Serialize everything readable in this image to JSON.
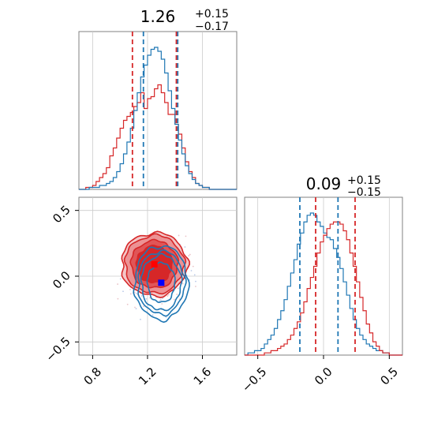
{
  "chart_data": {
    "type": "corner",
    "colors": {
      "series_a": "#1f77b4",
      "series_b": "#d62728",
      "series_a_marker": "#0000ff",
      "series_b_marker": "#ff0000",
      "grid": "#cccccc"
    },
    "parameters": [
      {
        "title": {
          "median": "1.26",
          "upper": "+0.15",
          "lower": "−0.17"
        },
        "range": [
          0.7,
          1.85
        ],
        "ticks": [
          0.8,
          1.2,
          1.6
        ],
        "tick_labels": [
          "0.8",
          "1.2",
          "1.6"
        ],
        "quantile_lines": {
          "series_a": [
            1.17,
            1.42
          ],
          "series_b": [
            1.09,
            1.41
          ]
        }
      },
      {
        "title": {
          "median": "0.09",
          "upper": "+0.15",
          "lower": "−0.15"
        },
        "range": [
          -0.6,
          0.6
        ],
        "ticks": [
          -0.5,
          0.0,
          0.5
        ],
        "tick_labels": [
          "−0.5",
          "0.0",
          "0.5"
        ],
        "quantile_lines": {
          "series_a": [
            -0.18,
            0.11
          ],
          "series_b": [
            -0.06,
            0.24
          ]
        }
      }
    ],
    "hist1d": {
      "series_a": {
        "x_edges_start": 0.7,
        "bin_width": 0.025,
        "counts": [
          0,
          0,
          0,
          1,
          1,
          1,
          2,
          2,
          3,
          4,
          6,
          9,
          13,
          18,
          24,
          31,
          40,
          49,
          57,
          63,
          68,
          71,
          72,
          70,
          66,
          59,
          50,
          41,
          33,
          25,
          18,
          12,
          8,
          5,
          3,
          2,
          1,
          1,
          0,
          0,
          0,
          0,
          0,
          0,
          0,
          0
        ]
      },
      "series_b": {
        "x_edges_start": 0.7,
        "bin_width": 0.025,
        "counts": [
          0,
          0,
          1,
          1,
          2,
          4,
          6,
          8,
          11,
          17,
          21,
          26,
          31,
          35,
          37,
          39,
          42,
          44,
          49,
          41,
          46,
          47,
          51,
          53,
          49,
          44,
          38,
          38,
          33,
          28,
          21,
          14,
          9,
          6,
          3,
          2,
          1,
          1,
          0,
          0,
          0,
          0,
          0,
          0,
          0,
          0
        ]
      }
    },
    "hist1d_y": {
      "series_a": {
        "x_edges_start": -0.6,
        "bin_width": 0.025,
        "counts": [
          0,
          1,
          1,
          2,
          2,
          3,
          5,
          7,
          9,
          12,
          16,
          20,
          25,
          31,
          37,
          43,
          50,
          55,
          60,
          63,
          64,
          63,
          60,
          58,
          55,
          53,
          52,
          48,
          44,
          39,
          33,
          27,
          21,
          16,
          12,
          9,
          7,
          5,
          4,
          3,
          2,
          2,
          1,
          1,
          0,
          0,
          0,
          0
        ]
      },
      "series_b": {
        "x_edges_start": -0.6,
        "bin_width": 0.025,
        "counts": [
          0,
          0,
          0,
          0,
          0,
          0,
          1,
          1,
          2,
          2,
          3,
          4,
          5,
          7,
          9,
          12,
          15,
          19,
          24,
          30,
          35,
          40,
          46,
          51,
          54,
          57,
          59,
          60,
          60,
          59,
          56,
          52,
          46,
          40,
          33,
          26,
          20,
          14,
          10,
          6,
          4,
          2,
          1,
          1,
          0,
          0,
          0,
          0
        ]
      }
    },
    "hist2d": {
      "series_a": {
        "center": [
          1.3,
          -0.05
        ],
        "contours": [
          {
            "rx": 0.195,
            "ry": 0.28
          },
          {
            "rx": 0.17,
            "ry": 0.24
          },
          {
            "rx": 0.145,
            "ry": 0.21
          },
          {
            "rx": 0.1,
            "ry": 0.15
          }
        ],
        "marker": [
          1.3,
          -0.05
        ]
      },
      "series_b": {
        "center": [
          1.25,
          0.09
        ],
        "contours": [
          {
            "rx": 0.24,
            "ry": 0.24
          },
          {
            "rx": 0.215,
            "ry": 0.22
          },
          {
            "rx": 0.17,
            "ry": 0.18
          },
          {
            "rx": 0.13,
            "ry": 0.14
          }
        ],
        "marker": [
          1.25,
          0.09
        ]
      }
    }
  }
}
